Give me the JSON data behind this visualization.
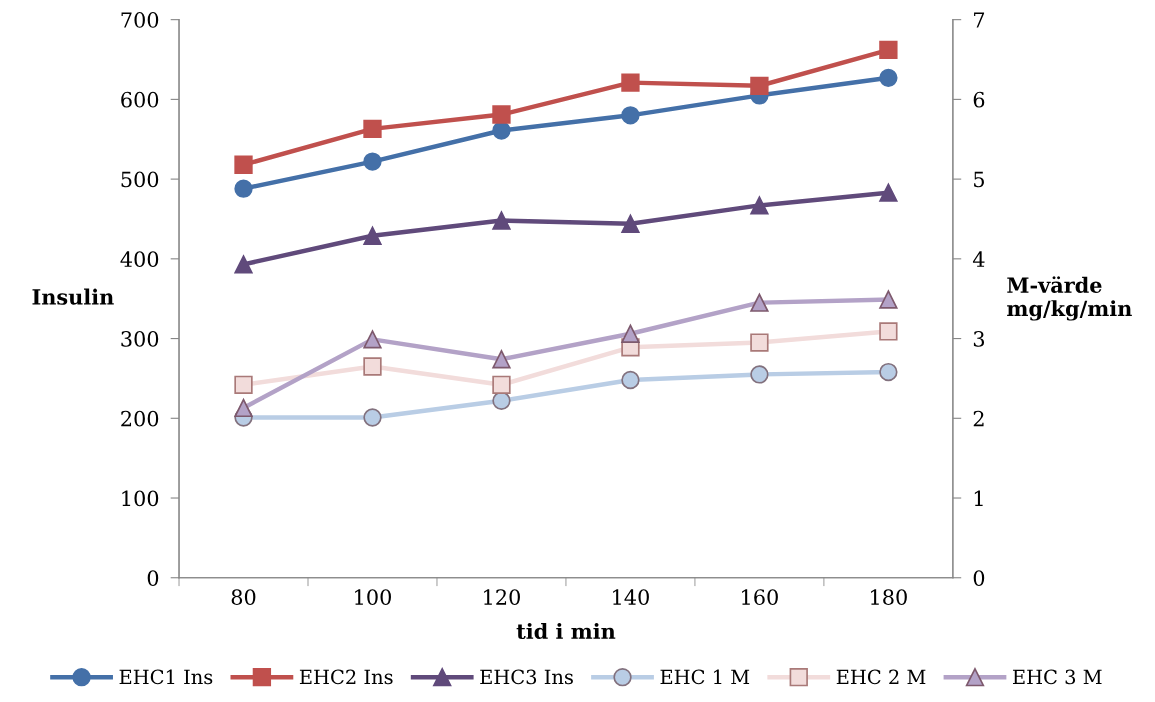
{
  "chart_data": {
    "type": "line",
    "xlabel": "tid i min",
    "ylabel": "Insulin",
    "y2label": "M-värde\nmg/kg/min",
    "categories": [
      "80",
      "100",
      "120",
      "140",
      "160",
      "180"
    ],
    "ylim": [
      0,
      700
    ],
    "yticks": [
      0,
      100,
      200,
      300,
      400,
      500,
      600,
      700
    ],
    "y2lim": [
      0,
      7
    ],
    "y2ticks": [
      0,
      1,
      2,
      3,
      4,
      5,
      6,
      7
    ],
    "grid": false,
    "legend": "bottom",
    "line_style": "solid",
    "series": [
      {
        "name": "EHC1 Ins",
        "color": "#4470a8",
        "marker": "circle",
        "values": [
          488,
          522,
          561,
          580,
          605,
          627
        ]
      },
      {
        "name": "EHC2 Ins",
        "color": "#c0504d",
        "marker": "square",
        "values": [
          518,
          563,
          581,
          621,
          617,
          662
        ]
      },
      {
        "name": "EHC3 Ins",
        "color": "#604a7b",
        "marker": "triangle",
        "values": [
          393,
          429,
          448,
          444,
          467,
          483
        ]
      },
      {
        "name": "EHC 1 M",
        "color": "#b9cde5",
        "marker": "circle",
        "axis": "y2",
        "values": [
          2.01,
          2.01,
          2.22,
          2.48,
          2.55,
          2.58
        ]
      },
      {
        "name": "EHC 2 M",
        "color": "#f2dcdb",
        "marker": "square",
        "axis": "y2",
        "values": [
          2.42,
          2.65,
          2.42,
          2.89,
          2.95,
          3.09
        ]
      },
      {
        "name": "EHC 3 M",
        "color": "#b3a2c7",
        "marker": "triangle",
        "axis": "y2",
        "values": [
          2.13,
          2.99,
          2.74,
          3.06,
          3.45,
          3.49
        ]
      }
    ]
  }
}
